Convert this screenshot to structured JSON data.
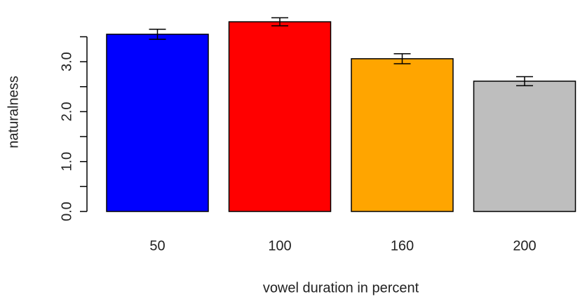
{
  "chart_data": {
    "type": "bar",
    "categories": [
      "50",
      "100",
      "160",
      "200"
    ],
    "values": [
      3.55,
      3.8,
      3.06,
      2.61
    ],
    "errors": [
      0.1,
      0.08,
      0.1,
      0.09
    ],
    "colors": [
      "#0000ff",
      "#ff0000",
      "#ffa500",
      "#bebebe"
    ],
    "xlabel": "vowel duration in percent",
    "ylabel": "naturalness",
    "ylim": [
      0,
      3.5
    ],
    "yticks": [
      {
        "value": 0,
        "label": "0.0"
      },
      {
        "value": 1,
        "label": "1.0"
      },
      {
        "value": 2,
        "label": "2.0"
      },
      {
        "value": 3,
        "label": "3.0"
      }
    ],
    "yminorticks": [
      0.5,
      1.5,
      2.5,
      3.5
    ]
  }
}
